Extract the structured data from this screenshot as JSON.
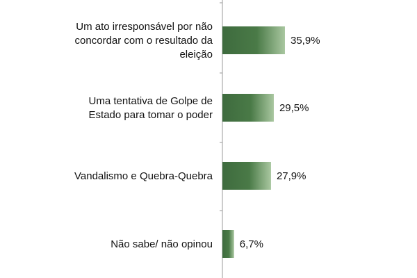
{
  "chart_data": {
    "type": "bar",
    "orientation": "horizontal",
    "categories": [
      [
        "Um ato irresponsável por não",
        "concordar com o resultado da",
        "eleição"
      ],
      [
        "Uma tentativa de Golpe de",
        "Estado para tomar o poder"
      ],
      [
        "Vandalismo e Quebra-Quebra"
      ],
      [
        "Não sabe/ não opinou"
      ]
    ],
    "values": [
      35.9,
      29.5,
      27.9,
      6.7
    ],
    "value_labels": [
      "35,9%",
      "29,5%",
      "27,9%",
      "6,7%"
    ],
    "xlim": [
      0,
      100
    ],
    "bar_color": "#3e6b3e",
    "bar_color_light": "#a9c7a0",
    "grid": false,
    "legend": "none"
  }
}
